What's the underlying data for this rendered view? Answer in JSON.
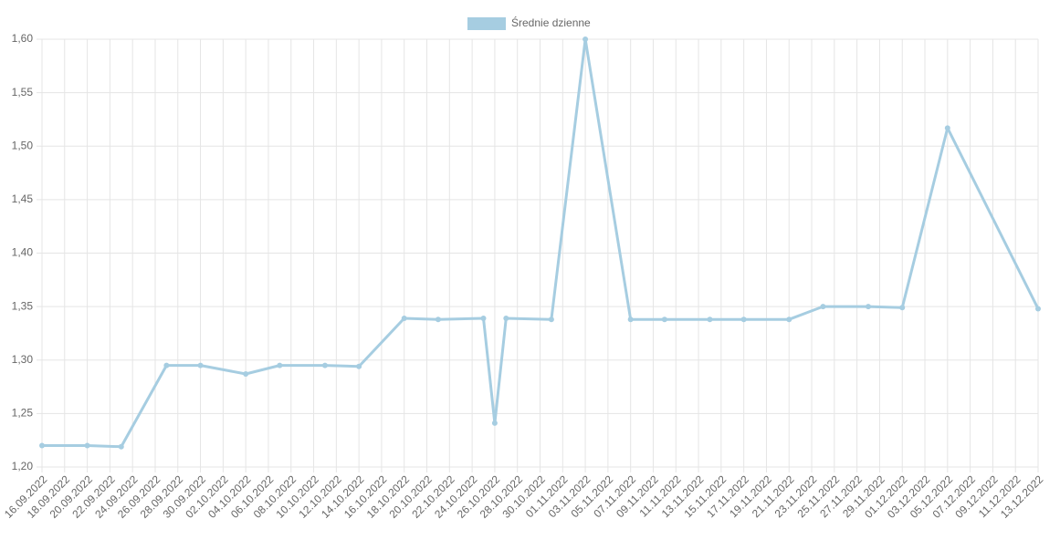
{
  "chart_data": {
    "type": "line",
    "series": [
      {
        "name": "Średnie dzienne",
        "color": "#a6cde1",
        "values": [
          1.22,
          1.22,
          1.219,
          1.295,
          1.295,
          1.287,
          1.295,
          1.295,
          1.294,
          1.339,
          1.338,
          1.339,
          1.241,
          1.339,
          1.338,
          1.6,
          1.338,
          1.338,
          1.338,
          1.338,
          1.338,
          1.35,
          1.35,
          1.349,
          1.517,
          1.348
        ]
      }
    ],
    "x": [
      "16.09.2022",
      "20.09.2022",
      "23.09.2022",
      "27.09.2022",
      "30.09.2022",
      "04.10.2022",
      "07.10.2022",
      "11.10.2022",
      "14.10.2022",
      "18.10.2022",
      "21.10.2022",
      "25.10.2022",
      "26.10.2022",
      "27.10.2022",
      "31.10.2022",
      "03.11.2022",
      "07.11.2022",
      "10.11.2022",
      "14.11.2022",
      "17.11.2022",
      "21.11.2022",
      "24.11.2022",
      "28.11.2022",
      "01.12.2022",
      "05.12.2022",
      "13.12.2022"
    ],
    "xlim": [
      "16.09.2022",
      "13.12.2022"
    ],
    "xticks": [
      "16.09.2022",
      "18.09.2022",
      "20.09.2022",
      "22.09.2022",
      "24.09.2022",
      "26.09.2022",
      "28.09.2022",
      "30.09.2022",
      "02.10.2022",
      "04.10.2022",
      "06.10.2022",
      "08.10.2022",
      "10.10.2022",
      "12.10.2022",
      "14.10.2022",
      "16.10.2022",
      "18.10.2022",
      "20.10.2022",
      "22.10.2022",
      "24.10.2022",
      "26.10.2022",
      "28.10.2022",
      "30.10.2022",
      "01.11.2022",
      "03.11.2022",
      "05.11.2022",
      "07.11.2022",
      "09.11.2022",
      "11.11.2022",
      "13.11.2022",
      "15.11.2022",
      "17.11.2022",
      "19.11.2022",
      "21.11.2022",
      "23.11.2022",
      "25.11.2022",
      "27.11.2022",
      "29.11.2022",
      "01.12.2022",
      "03.12.2022",
      "05.12.2022",
      "07.12.2022",
      "09.12.2022",
      "11.12.2022",
      "13.12.2022"
    ],
    "ylim": [
      1.2,
      1.6
    ],
    "yticks": [
      {
        "value": 1.2,
        "label": "1,20"
      },
      {
        "value": 1.25,
        "label": "1,25"
      },
      {
        "value": 1.3,
        "label": "1,30"
      },
      {
        "value": 1.35,
        "label": "1,35"
      },
      {
        "value": 1.4,
        "label": "1,40"
      },
      {
        "value": 1.45,
        "label": "1,45"
      },
      {
        "value": 1.5,
        "label": "1,50"
      },
      {
        "value": 1.55,
        "label": "1,55"
      },
      {
        "value": 1.6,
        "label": "1,60"
      }
    ],
    "grid": true,
    "legend": "top"
  }
}
